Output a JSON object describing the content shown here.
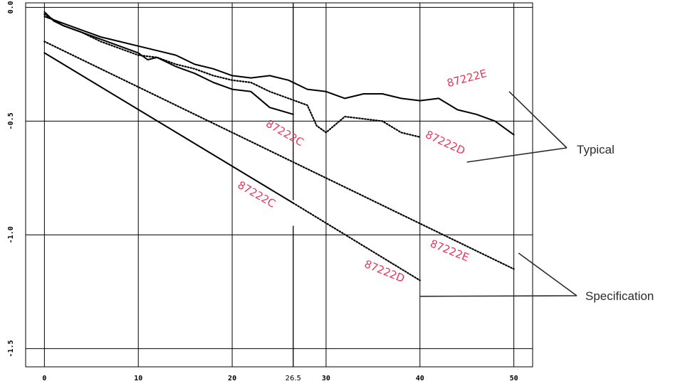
{
  "colors": {
    "background": "#ffffff",
    "axis": "#000000",
    "label": "#e8375a",
    "annotation": "#2b2b2b"
  },
  "chart_data": {
    "type": "line",
    "title": "",
    "xlabel": "",
    "ylabel": "",
    "xlim": [
      -2,
      52
    ],
    "ylim": [
      -1.58,
      0.02
    ],
    "grid": true,
    "legend": "none",
    "x_ticks": [
      "0",
      "10",
      "20",
      "26.5",
      "30",
      "40",
      "50"
    ],
    "x_tick_values": [
      0,
      10,
      20,
      26.5,
      30,
      40,
      50
    ],
    "y_ticks": [
      "0.0",
      "-0.5",
      "-1.0",
      "-1.5"
    ],
    "y_tick_values": [
      0,
      -0.5,
      -1.0,
      -1.5
    ],
    "series": [
      {
        "name": "87222C",
        "group": "Typical",
        "style": "solid",
        "x": [
          0,
          1,
          2,
          4,
          6,
          8,
          10,
          11,
          12,
          14,
          16,
          18,
          20,
          22,
          24,
          26.5
        ],
        "y": [
          -0.02,
          -0.06,
          -0.08,
          -0.11,
          -0.14,
          -0.17,
          -0.2,
          -0.23,
          -0.22,
          -0.26,
          -0.29,
          -0.33,
          -0.36,
          -0.37,
          -0.44,
          -0.47
        ]
      },
      {
        "name": "87222D",
        "group": "Typical",
        "style": "dotted",
        "x": [
          0,
          2,
          4,
          6,
          8,
          10,
          12,
          14,
          16,
          18,
          20,
          22,
          24,
          26,
          28,
          29,
          30,
          32,
          34,
          36,
          38,
          40
        ],
        "y": [
          -0.03,
          -0.08,
          -0.11,
          -0.15,
          -0.18,
          -0.21,
          -0.22,
          -0.25,
          -0.27,
          -0.3,
          -0.32,
          -0.33,
          -0.37,
          -0.4,
          -0.43,
          -0.52,
          -0.55,
          -0.48,
          -0.49,
          -0.5,
          -0.55,
          -0.57
        ]
      },
      {
        "name": "87222E",
        "group": "Typical",
        "style": "solid",
        "x": [
          0,
          2,
          4,
          6,
          8,
          10,
          12,
          14,
          16,
          18,
          20,
          22,
          24,
          26,
          28,
          30,
          32,
          34,
          36,
          38,
          40,
          42,
          44,
          46,
          48,
          50
        ],
        "y": [
          -0.04,
          -0.07,
          -0.1,
          -0.13,
          -0.15,
          -0.17,
          -0.19,
          -0.21,
          -0.25,
          -0.27,
          -0.3,
          -0.31,
          -0.3,
          -0.32,
          -0.36,
          -0.37,
          -0.4,
          -0.38,
          -0.38,
          -0.4,
          -0.41,
          -0.4,
          -0.45,
          -0.47,
          -0.5,
          -0.56
        ]
      },
      {
        "name": "87222C",
        "group": "Specification",
        "style": "solid",
        "x": [
          0,
          26.5
        ],
        "y": [
          -0.2,
          -0.86
        ]
      },
      {
        "name": "87222D",
        "group": "Specification",
        "style": "dotted",
        "x": [
          26.5,
          40
        ],
        "y": [
          -0.86,
          -1.2
        ]
      },
      {
        "name": "87222E",
        "group": "Specification",
        "style": "dotted",
        "x": [
          0,
          50
        ],
        "y": [
          -0.15,
          -1.15
        ]
      }
    ],
    "annotations": [
      {
        "text": "87222C",
        "x": 23.5,
        "y": -0.52,
        "rotate": 30
      },
      {
        "text": "87222D",
        "x": 40.5,
        "y": -0.57,
        "rotate": 25
      },
      {
        "text": "87222E",
        "x": 43,
        "y": -0.35,
        "rotate": -15
      },
      {
        "text": "87222C",
        "x": 20.5,
        "y": -0.79,
        "rotate": 30
      },
      {
        "text": "87222E",
        "x": 41,
        "y": -1.05,
        "rotate": 22
      },
      {
        "text": "87222D",
        "x": 34,
        "y": -1.14,
        "rotate": 22
      }
    ],
    "callouts": [
      {
        "text": "Typical",
        "targets": [
          {
            "x": 49.5,
            "y": -0.37
          },
          {
            "x": 45,
            "y": -0.68
          }
        ]
      },
      {
        "text": "Specification",
        "targets": [
          {
            "x": 50.5,
            "y": -1.08
          },
          {
            "x": 40,
            "y": -1.27
          }
        ]
      }
    ]
  }
}
